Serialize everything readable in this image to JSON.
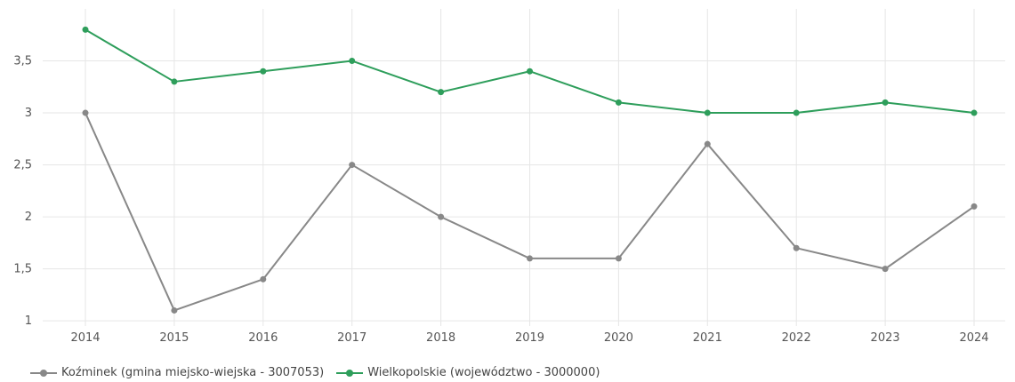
{
  "chart_data": {
    "type": "line",
    "x": [
      "2014",
      "2015",
      "2016",
      "2017",
      "2018",
      "2019",
      "2020",
      "2021",
      "2022",
      "2023",
      "2024"
    ],
    "ylim": [
      0.95,
      4.0
    ],
    "yticks": [
      1,
      1.5,
      2,
      2.5,
      3,
      3.5
    ],
    "ytick_labels": [
      "1",
      "1,5",
      "2",
      "2,5",
      "3",
      "3,5"
    ],
    "grid": true,
    "legend_position": "bottom-left",
    "series": [
      {
        "name": "Koźminek (gmina miejsko-wiejska - 3007053)",
        "color": "#888888",
        "values": [
          3.0,
          1.1,
          1.4,
          2.5,
          2.0,
          1.6,
          1.6,
          2.7,
          1.7,
          1.5,
          2.1
        ]
      },
      {
        "name": "Wielkopolskie (województwo - 3000000)",
        "color": "#2e9e5b",
        "values": [
          3.8,
          3.3,
          3.4,
          3.5,
          3.2,
          3.4,
          3.1,
          3.0,
          3.0,
          3.1,
          3.0
        ]
      }
    ]
  }
}
